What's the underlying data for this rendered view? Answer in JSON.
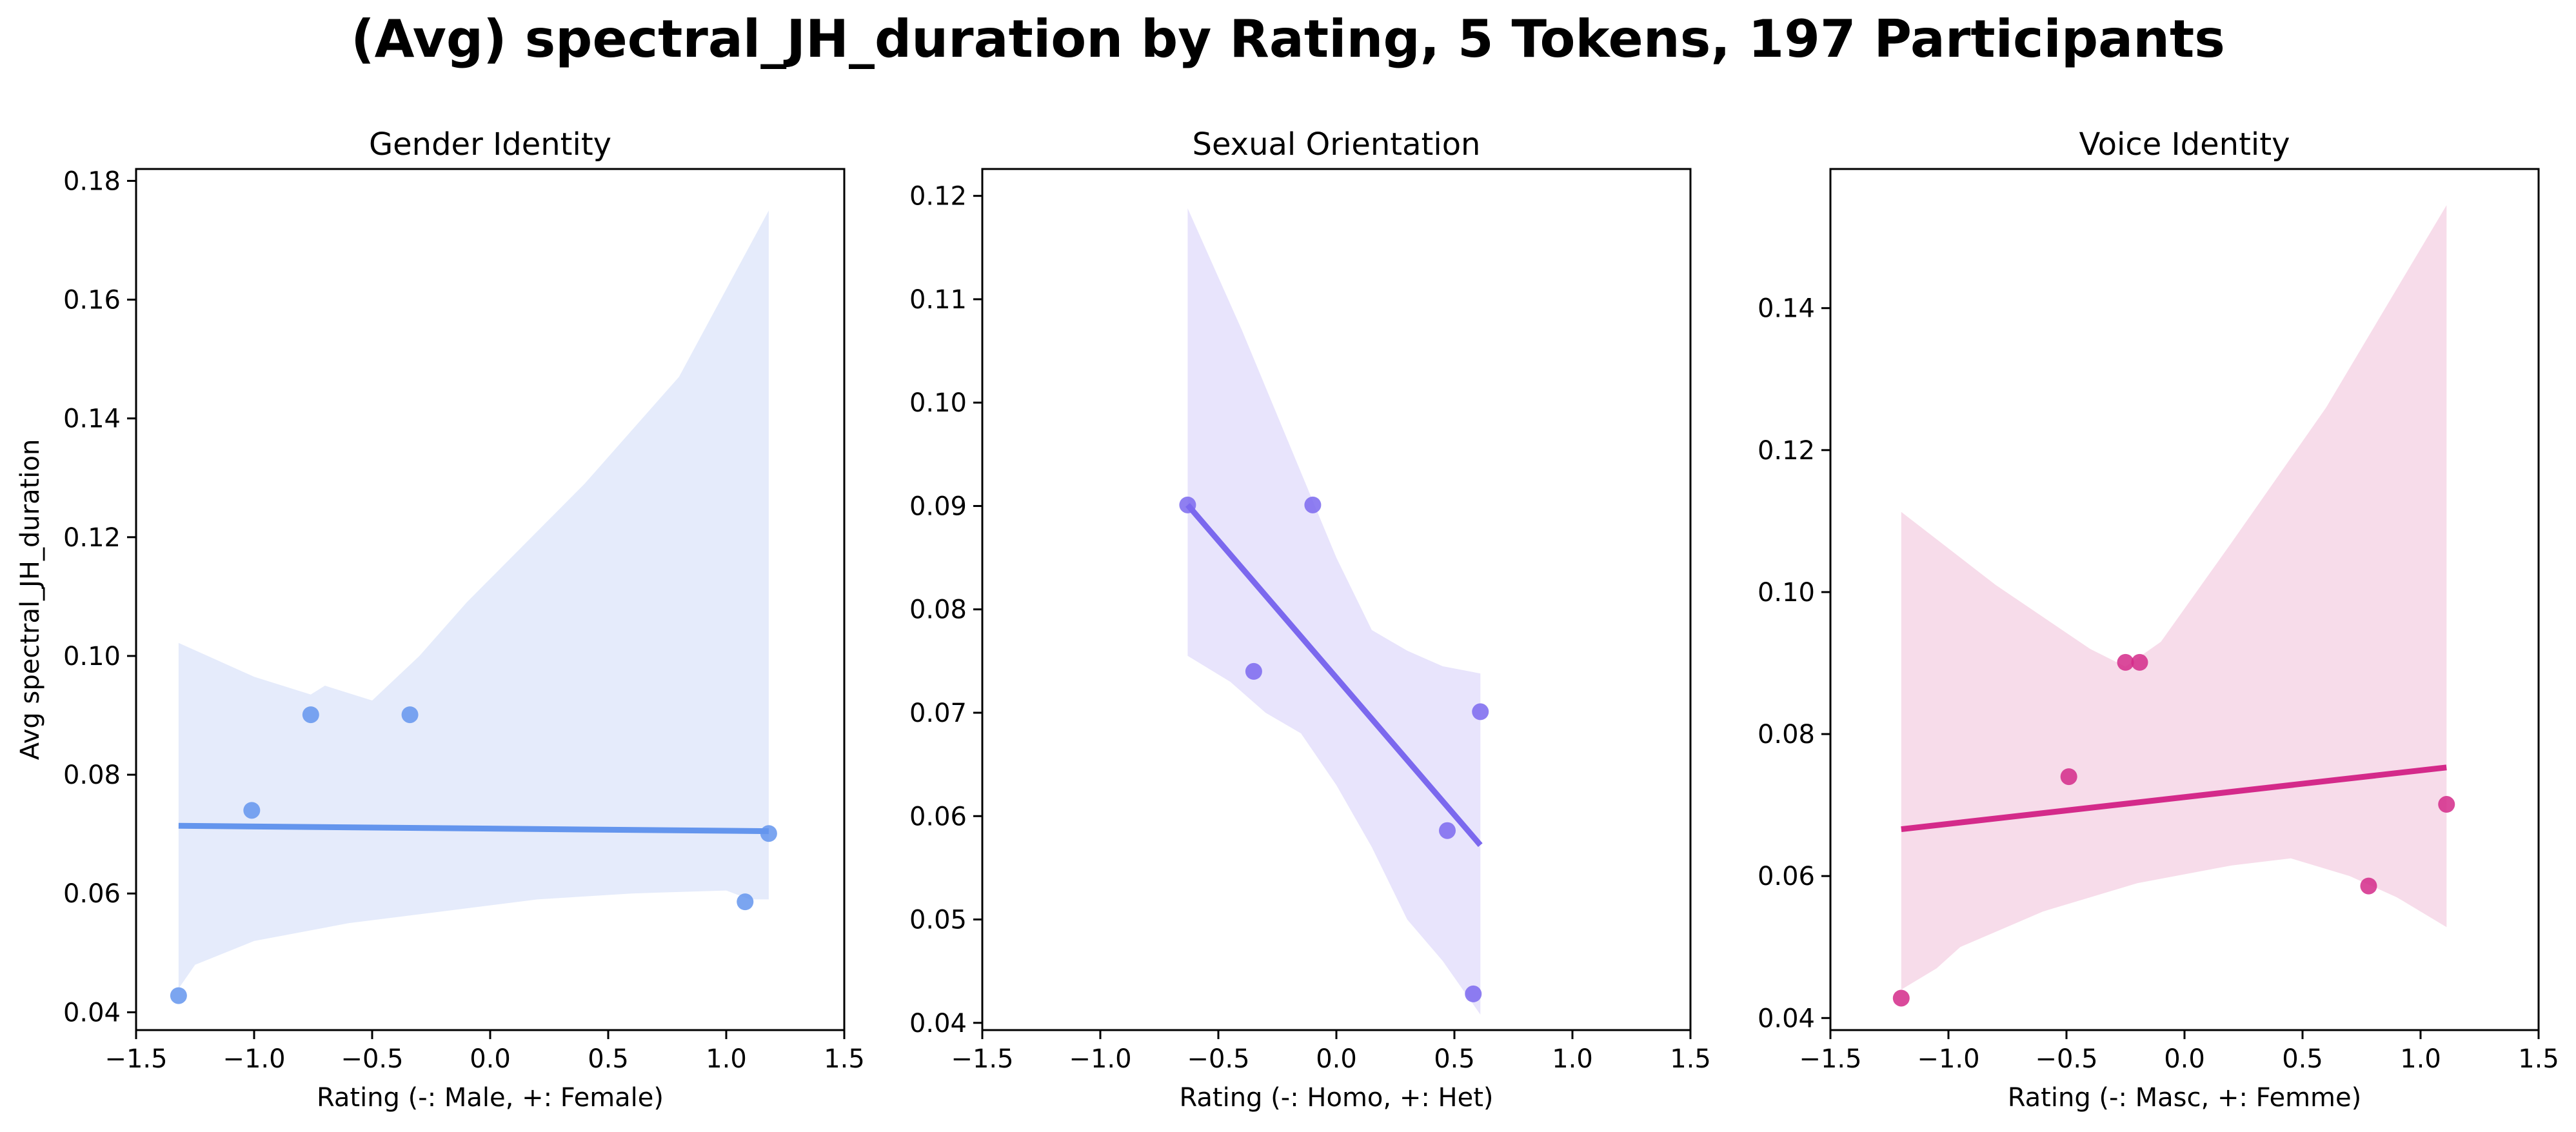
{
  "figure": {
    "title": "(Avg) spectral_JH_duration by Rating, 5 Tokens, 197 Participants"
  },
  "chart_data": [
    {
      "type": "scatter",
      "title": "Gender Identity",
      "xlabel": "Rating (-: Male, +: Female)",
      "ylabel": "Avg spectral_JH_duration",
      "xlim": [
        -1.5,
        1.5
      ],
      "ylim": [
        0.037,
        0.182
      ],
      "xticks": [
        -1.5,
        -1.0,
        -0.5,
        0.0,
        0.5,
        1.0,
        1.5
      ],
      "yticks": [
        0.04,
        0.06,
        0.08,
        0.1,
        0.12,
        0.14,
        0.16,
        0.18
      ],
      "xtick_labels": [
        "−1.5",
        "−1.0",
        "−0.5",
        "0.0",
        "0.5",
        "1.0",
        "1.5"
      ],
      "ytick_labels": [
        "0.04",
        "0.06",
        "0.08",
        "0.10",
        "0.12",
        "0.14",
        "0.16",
        "0.18"
      ],
      "color": "#6495ED",
      "band_color": "#E5EBFB",
      "points": [
        {
          "x": -1.32,
          "y": 0.0428
        },
        {
          "x": -1.01,
          "y": 0.074
        },
        {
          "x": -0.76,
          "y": 0.0901
        },
        {
          "x": -0.34,
          "y": 0.0901
        },
        {
          "x": 1.08,
          "y": 0.0586
        },
        {
          "x": 1.18,
          "y": 0.0701
        }
      ],
      "regression_line": [
        {
          "x": -1.32,
          "y": 0.0714
        },
        {
          "x": 1.18,
          "y": 0.0705
        }
      ],
      "confidence_band": {
        "upper": [
          {
            "x": -1.32,
            "y": 0.1022
          },
          {
            "x": -1.0,
            "y": 0.0965
          },
          {
            "x": -0.76,
            "y": 0.0935
          },
          {
            "x": -0.7,
            "y": 0.095
          },
          {
            "x": -0.5,
            "y": 0.0925
          },
          {
            "x": -0.3,
            "y": 0.1
          },
          {
            "x": -0.1,
            "y": 0.109
          },
          {
            "x": 0.0,
            "y": 0.113
          },
          {
            "x": 0.4,
            "y": 0.129
          },
          {
            "x": 0.8,
            "y": 0.147
          },
          {
            "x": 1.18,
            "y": 0.175
          }
        ],
        "lower": [
          {
            "x": -1.32,
            "y": 0.044
          },
          {
            "x": -1.25,
            "y": 0.048
          },
          {
            "x": -1.0,
            "y": 0.052
          },
          {
            "x": -0.6,
            "y": 0.055
          },
          {
            "x": -0.2,
            "y": 0.057
          },
          {
            "x": 0.2,
            "y": 0.059
          },
          {
            "x": 0.6,
            "y": 0.06
          },
          {
            "x": 1.0,
            "y": 0.0605
          },
          {
            "x": 1.1,
            "y": 0.059
          },
          {
            "x": 1.18,
            "y": 0.059
          }
        ]
      }
    },
    {
      "type": "scatter",
      "title": "Sexual Orientation",
      "xlabel": "Rating (-: Homo, +: Het)",
      "ylabel": "",
      "xlim": [
        -1.5,
        1.5
      ],
      "ylim": [
        0.0393,
        0.1226
      ],
      "xticks": [
        -1.5,
        -1.0,
        -0.5,
        0.0,
        0.5,
        1.0,
        1.5
      ],
      "yticks": [
        0.04,
        0.05,
        0.06,
        0.07,
        0.08,
        0.09,
        0.1,
        0.11,
        0.12
      ],
      "xtick_labels": [
        "−1.5",
        "−1.0",
        "−0.5",
        "0.0",
        "0.5",
        "1.0",
        "1.5"
      ],
      "ytick_labels": [
        "0.04",
        "0.05",
        "0.06",
        "0.07",
        "0.08",
        "0.09",
        "0.10",
        "0.11",
        "0.12"
      ],
      "color": "#7B68EE",
      "band_color": "#E8E4FC",
      "points": [
        {
          "x": -0.63,
          "y": 0.0901
        },
        {
          "x": -0.35,
          "y": 0.074
        },
        {
          "x": -0.1,
          "y": 0.0901
        },
        {
          "x": 0.47,
          "y": 0.0586
        },
        {
          "x": 0.58,
          "y": 0.0428
        },
        {
          "x": 0.61,
          "y": 0.0701
        }
      ],
      "regression_line": [
        {
          "x": -0.63,
          "y": 0.0901
        },
        {
          "x": 0.61,
          "y": 0.0572
        }
      ],
      "confidence_band": {
        "upper": [
          {
            "x": -0.63,
            "y": 0.1188
          },
          {
            "x": -0.4,
            "y": 0.107
          },
          {
            "x": -0.2,
            "y": 0.096
          },
          {
            "x": 0.0,
            "y": 0.085
          },
          {
            "x": 0.15,
            "y": 0.078
          },
          {
            "x": 0.3,
            "y": 0.076
          },
          {
            "x": 0.45,
            "y": 0.0745
          },
          {
            "x": 0.61,
            "y": 0.0738
          }
        ],
        "lower": [
          {
            "x": -0.63,
            "y": 0.0755
          },
          {
            "x": -0.45,
            "y": 0.073
          },
          {
            "x": -0.3,
            "y": 0.07
          },
          {
            "x": -0.15,
            "y": 0.068
          },
          {
            "x": 0.0,
            "y": 0.063
          },
          {
            "x": 0.15,
            "y": 0.057
          },
          {
            "x": 0.3,
            "y": 0.05
          },
          {
            "x": 0.45,
            "y": 0.046
          },
          {
            "x": 0.61,
            "y": 0.0408
          }
        ]
      }
    },
    {
      "type": "scatter",
      "title": "Voice Identity",
      "xlabel": "Rating (-: Masc, +: Femme)",
      "ylabel": "",
      "xlim": [
        -1.5,
        1.5
      ],
      "ylim": [
        0.0383,
        0.1596
      ],
      "xticks": [
        -1.5,
        -1.0,
        -0.5,
        0.0,
        0.5,
        1.0,
        1.5
      ],
      "yticks": [
        0.04,
        0.06,
        0.08,
        0.1,
        0.12,
        0.14
      ],
      "xtick_labels": [
        "−1.5",
        "−1.0",
        "−0.5",
        "0.0",
        "0.5",
        "1.0",
        "1.5"
      ],
      "ytick_labels": [
        "0.04",
        "0.06",
        "0.08",
        "0.10",
        "0.12",
        "0.14"
      ],
      "color": "#D42A8A",
      "band_color": "#F7DCEA",
      "points": [
        {
          "x": -1.2,
          "y": 0.0428
        },
        {
          "x": -0.49,
          "y": 0.074
        },
        {
          "x": -0.25,
          "y": 0.0901
        },
        {
          "x": -0.19,
          "y": 0.0901
        },
        {
          "x": 0.78,
          "y": 0.0586
        },
        {
          "x": 1.11,
          "y": 0.0701
        }
      ],
      "regression_line": [
        {
          "x": -1.2,
          "y": 0.0666
        },
        {
          "x": 1.11,
          "y": 0.0753
        }
      ],
      "confidence_band": {
        "upper": [
          {
            "x": -1.2,
            "y": 0.1113
          },
          {
            "x": -0.8,
            "y": 0.101
          },
          {
            "x": -0.4,
            "y": 0.092
          },
          {
            "x": -0.25,
            "y": 0.0895
          },
          {
            "x": -0.1,
            "y": 0.093
          },
          {
            "x": 0.2,
            "y": 0.107
          },
          {
            "x": 0.6,
            "y": 0.126
          },
          {
            "x": 1.11,
            "y": 0.1545
          }
        ],
        "lower": [
          {
            "x": -1.2,
            "y": 0.044
          },
          {
            "x": -1.05,
            "y": 0.047
          },
          {
            "x": -0.95,
            "y": 0.05
          },
          {
            "x": -0.6,
            "y": 0.055
          },
          {
            "x": -0.2,
            "y": 0.059
          },
          {
            "x": 0.2,
            "y": 0.0615
          },
          {
            "x": 0.45,
            "y": 0.0625
          },
          {
            "x": 0.7,
            "y": 0.06
          },
          {
            "x": 0.9,
            "y": 0.057
          },
          {
            "x": 1.11,
            "y": 0.0528
          }
        ]
      }
    }
  ]
}
